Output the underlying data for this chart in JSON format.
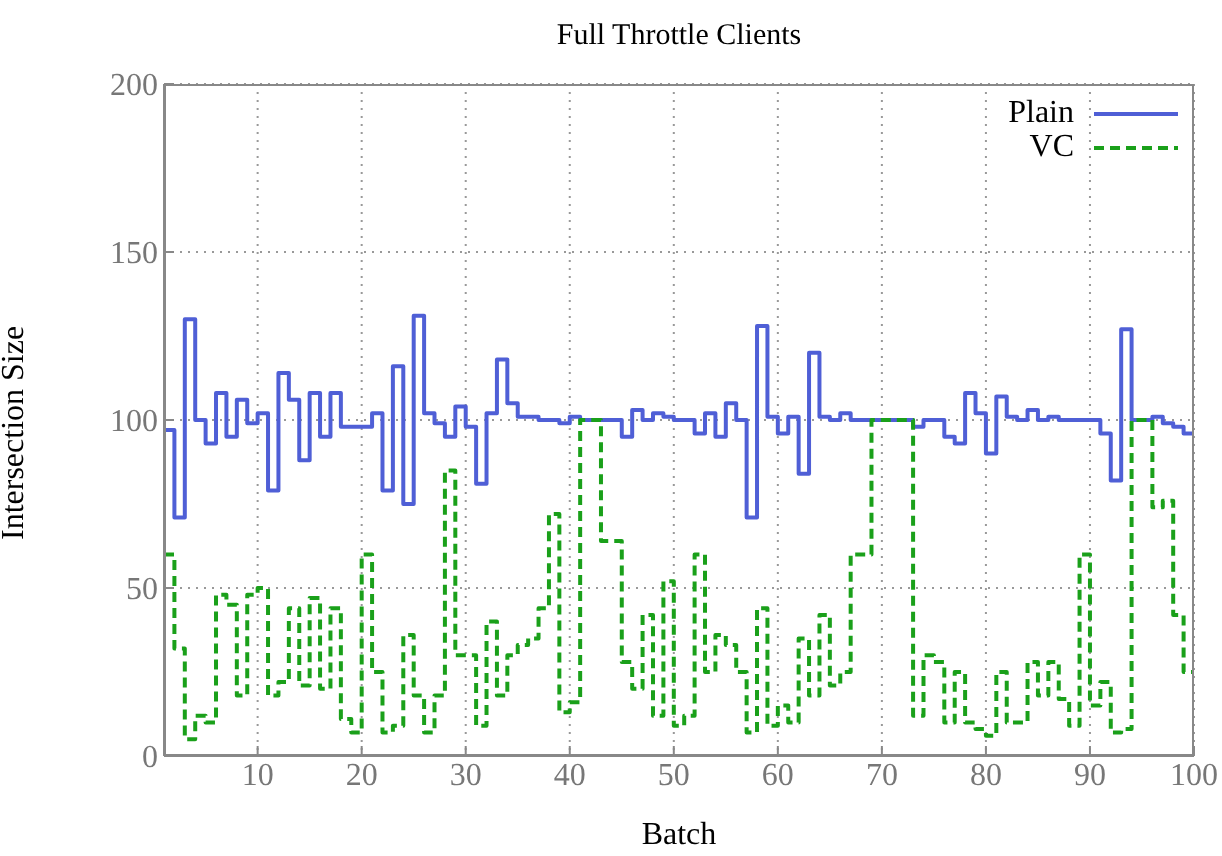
{
  "chart_data": {
    "type": "step",
    "title": "Full Throttle Clients",
    "xlabel": "Batch",
    "ylabel": "Intersection Size",
    "x": [
      1,
      2,
      3,
      4,
      5,
      6,
      7,
      8,
      9,
      10,
      11,
      12,
      13,
      14,
      15,
      16,
      17,
      18,
      19,
      20,
      21,
      22,
      23,
      24,
      25,
      26,
      27,
      28,
      29,
      30,
      31,
      32,
      33,
      34,
      35,
      36,
      37,
      38,
      39,
      40,
      41,
      42,
      43,
      44,
      45,
      46,
      47,
      48,
      49,
      50,
      51,
      52,
      53,
      54,
      55,
      56,
      57,
      58,
      59,
      60,
      61,
      62,
      63,
      64,
      65,
      66,
      67,
      68,
      69,
      70,
      71,
      72,
      73,
      74,
      75,
      76,
      77,
      78,
      79,
      80,
      81,
      82,
      83,
      84,
      85,
      86,
      87,
      88,
      89,
      90,
      91,
      92,
      93,
      94,
      95,
      96,
      97,
      98,
      99,
      100
    ],
    "series": [
      {
        "name": "Plain",
        "color": "#4f5fd6",
        "line_style": "solid",
        "values": [
          97,
          71,
          130,
          100,
          93,
          108,
          95,
          106,
          99,
          102,
          79,
          114,
          106,
          88,
          108,
          95,
          108,
          98,
          98,
          98,
          102,
          79,
          116,
          75,
          131,
          102,
          99,
          95,
          104,
          98,
          81,
          102,
          118,
          105,
          101,
          101,
          100,
          100,
          99,
          101,
          100,
          100,
          100,
          100,
          95,
          103,
          100,
          102,
          101,
          100,
          100,
          96,
          102,
          95,
          105,
          100,
          71,
          128,
          101,
          96,
          101,
          84,
          120,
          101,
          100,
          102,
          100,
          100,
          100,
          100,
          100,
          100,
          98,
          100,
          100,
          95,
          93,
          108,
          102,
          90,
          107,
          101,
          100,
          103,
          100,
          101,
          100,
          100,
          100,
          100,
          96,
          82,
          127,
          100,
          100,
          101,
          99,
          98,
          96,
          105
        ]
      },
      {
        "name": "VC",
        "color": "#1aa01a",
        "line_style": "dashed",
        "values": [
          60,
          32,
          5,
          12,
          10,
          48,
          45,
          18,
          48,
          50,
          18,
          22,
          44,
          21,
          47,
          20,
          44,
          11,
          7,
          60,
          25,
          7,
          9,
          36,
          18,
          7,
          18,
          85,
          30,
          30,
          9,
          40,
          18,
          30,
          33,
          35,
          44,
          72,
          13,
          16,
          100,
          100,
          64,
          64,
          28,
          20,
          42,
          12,
          52,
          9,
          12,
          60,
          25,
          36,
          33,
          25,
          7,
          44,
          9,
          15,
          10,
          35,
          18,
          42,
          21,
          25,
          60,
          60,
          100,
          100,
          100,
          100,
          12,
          30,
          28,
          10,
          25,
          10,
          8,
          6,
          25,
          10,
          10,
          28,
          18,
          28,
          17,
          9,
          60,
          15,
          22,
          7,
          8,
          100,
          100,
          74,
          76,
          42,
          25,
          60
        ]
      }
    ],
    "xlim": [
      1,
      100
    ],
    "xticks": [
      10,
      20,
      30,
      40,
      50,
      60,
      70,
      80,
      90,
      100
    ],
    "ylim": [
      0,
      200
    ],
    "yticks": [
      0,
      50,
      100,
      150,
      200
    ],
    "grid": true,
    "legend": "top right",
    "marker": "none"
  }
}
